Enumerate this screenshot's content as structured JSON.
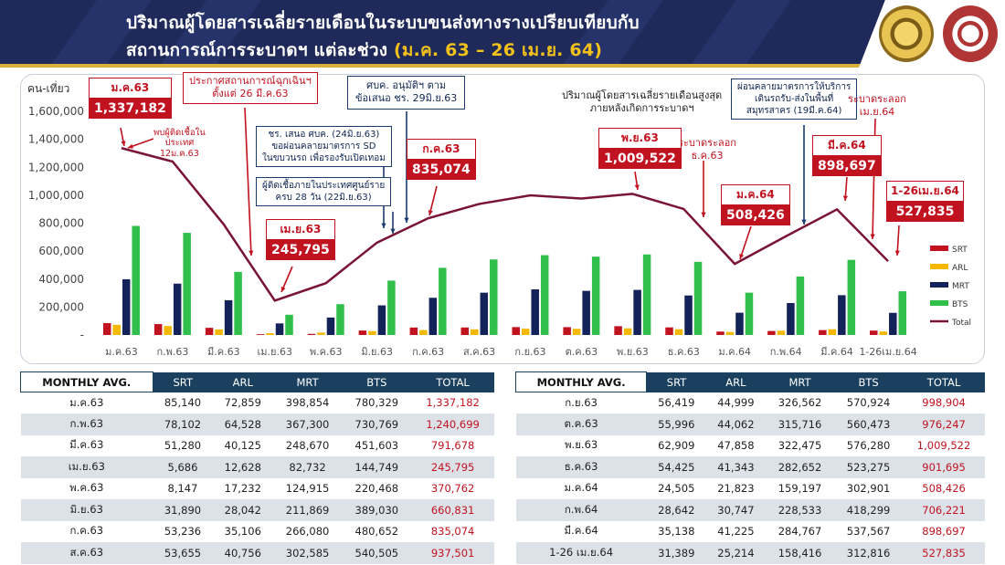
{
  "header": {
    "title_line1": "ปริมาณผู้โดยสารเฉลี่ยรายเดือนในระบบขนส่งทางรางเปรียบเทียบกับ",
    "title_line2_prefix": "สถานการณ์การระบาดฯ แต่ละช่วง ",
    "title_line2_highlight": "(ม.ค. 63 – 26 เม.ย. 64)",
    "logo_left": "railway-department-seal",
    "logo_right": "ministry-seal"
  },
  "colors": {
    "SRT": "#c1121f",
    "ARL": "#f5b800",
    "MRT": "#14225a",
    "BTS": "#2fbf4a",
    "Total": "#7a1436",
    "header_bg": "#1f2a5a",
    "highlight": "#f2c21b"
  },
  "chart_data": {
    "type": "bar",
    "ylabel": "คน-เที่ยว",
    "ylim": [
      0,
      1600000
    ],
    "yticks": [
      "1,600,000",
      "1,400,000",
      "1,200,000",
      "1,000,000",
      "800,000",
      "600,000",
      "400,000",
      "200,000",
      "-"
    ],
    "ytick_values": [
      1600000,
      1400000,
      1200000,
      1000000,
      800000,
      600000,
      400000,
      200000,
      0
    ],
    "categories": [
      "ม.ค.63",
      "ก.พ.63",
      "มี.ค.63",
      "เม.ย.63",
      "พ.ค.63",
      "มิ.ย.63",
      "ก.ค.63",
      "ส.ค.63",
      "ก.ย.63",
      "ต.ค.63",
      "พ.ย.63",
      "ธ.ค.63",
      "ม.ค.64",
      "ก.พ.64",
      "มี.ค.64",
      "1-26เม.ย.64"
    ],
    "series": [
      {
        "name": "SRT",
        "type": "bar",
        "values": [
          85140,
          78102,
          51280,
          5686,
          8147,
          31890,
          53236,
          53655,
          56419,
          55996,
          62909,
          54425,
          24505,
          28642,
          35138,
          31389
        ]
      },
      {
        "name": "ARL",
        "type": "bar",
        "values": [
          72859,
          64528,
          40125,
          12628,
          17232,
          28042,
          35106,
          40756,
          44999,
          44062,
          47858,
          41343,
          21823,
          30747,
          41225,
          25214
        ]
      },
      {
        "name": "MRT",
        "type": "bar",
        "values": [
          398854,
          367300,
          248670,
          82732,
          124915,
          211869,
          266080,
          302585,
          326562,
          315716,
          322475,
          282652,
          159197,
          228533,
          284767,
          158416
        ]
      },
      {
        "name": "BTS",
        "type": "bar",
        "values": [
          780329,
          730769,
          451603,
          144749,
          220468,
          389030,
          480652,
          540505,
          570924,
          560473,
          576280,
          523275,
          302901,
          418299,
          537567,
          312816
        ]
      },
      {
        "name": "Total",
        "type": "line",
        "values": [
          1337182,
          1240699,
          791678,
          245795,
          370762,
          660831,
          835074,
          937501,
          998904,
          976247,
          1009522,
          901695,
          508426,
          706221,
          898697,
          527835
        ]
      }
    ],
    "legend_position": "right",
    "data_badges": [
      {
        "label": "ม.ค.63",
        "value": "1,337,182"
      },
      {
        "label": "เม.ย.63",
        "value": "245,795"
      },
      {
        "label": "ก.ค.63",
        "value": "835,074"
      },
      {
        "label": "พ.ย.63",
        "value": "1,009,522"
      },
      {
        "label": "ม.ค.64",
        "value": "508,426"
      },
      {
        "label": "มี.ค.64",
        "value": "898,697"
      },
      {
        "label": "1-26เม.ย.64",
        "value": "527,835"
      }
    ]
  },
  "annotations": {
    "first_case": "พบผู้ติดเชื้อใน\nประเทศ\n12ม.ค.63",
    "emergency": "ประกาศสถานการณ์ฉุกเฉินฯ\nตั้งแต่ 26 มี.ค.63",
    "relax": "ชร. เสนอ ศบค. (24มิ.ย.63)\nขอผ่อนคลายมาตรการ SD\nในขบวนรถ เพื่อรองรับเปิดเทอม",
    "zero_cases": "ผู้ติดเชื้อภายในประเทศศูนย์ราย\nครบ 28 วัน (22มิ.ย.63)",
    "approve": "ศบค. อนุมัติฯ ตาม\nข้อเสนอ ชร. 29มิ.ย.63",
    "peak_note": "ปริมาณผู้โดยสารเฉลี่ยรายเดือนสูงสุด\nภายหลังเกิดการระบาดฯ",
    "outbreak_dec": "ระบาดระลอก\nธ.ค.63",
    "relax_services": "ผ่อนคลายมาตรการให้บริการ\nเดินรถรับ-ส่งในพื้นที่\nสมุทรสาคร (19มี.ค.64)",
    "outbreak_apr": "ระบาดระลอก\nเม.ย.64"
  },
  "table_left": {
    "headers": [
      "MONTHLY AVG.",
      "SRT",
      "ARL",
      "MRT",
      "BTS",
      "TOTAL"
    ],
    "rows": [
      [
        "ม.ค.63",
        "85,140",
        "72,859",
        "398,854",
        "780,329",
        "1,337,182"
      ],
      [
        "ก.พ.63",
        "78,102",
        "64,528",
        "367,300",
        "730,769",
        "1,240,699"
      ],
      [
        "มี.ค.63",
        "51,280",
        "40,125",
        "248,670",
        "451,603",
        "791,678"
      ],
      [
        "เม.ย.63",
        "5,686",
        "12,628",
        "82,732",
        "144,749",
        "245,795"
      ],
      [
        "พ.ค.63",
        "8,147",
        "17,232",
        "124,915",
        "220,468",
        "370,762"
      ],
      [
        "มิ.ย.63",
        "31,890",
        "28,042",
        "211,869",
        "389,030",
        "660,831"
      ],
      [
        "ก.ค.63",
        "53,236",
        "35,106",
        "266,080",
        "480,652",
        "835,074"
      ],
      [
        "ส.ค.63",
        "53,655",
        "40,756",
        "302,585",
        "540,505",
        "937,501"
      ]
    ]
  },
  "table_right": {
    "headers": [
      "MONTHLY AVG.",
      "SRT",
      "ARL",
      "MRT",
      "BTS",
      "TOTAL"
    ],
    "rows": [
      [
        "ก.ย.63",
        "56,419",
        "44,999",
        "326,562",
        "570,924",
        "998,904"
      ],
      [
        "ต.ค.63",
        "55,996",
        "44,062",
        "315,716",
        "560,473",
        "976,247"
      ],
      [
        "พ.ย.63",
        "62,909",
        "47,858",
        "322,475",
        "576,280",
        "1,009,522"
      ],
      [
        "ธ.ค.63",
        "54,425",
        "41,343",
        "282,652",
        "523,275",
        "901,695"
      ],
      [
        "ม.ค.64",
        "24,505",
        "21,823",
        "159,197",
        "302,901",
        "508,426"
      ],
      [
        "ก.พ.64",
        "28,642",
        "30,747",
        "228,533",
        "418,299",
        "706,221"
      ],
      [
        "มี.ค.64",
        "35,138",
        "41,225",
        "284,767",
        "537,567",
        "898,697"
      ],
      [
        "1-26 เม.ย.64",
        "31,389",
        "25,214",
        "158,416",
        "312,816",
        "527,835"
      ]
    ]
  }
}
